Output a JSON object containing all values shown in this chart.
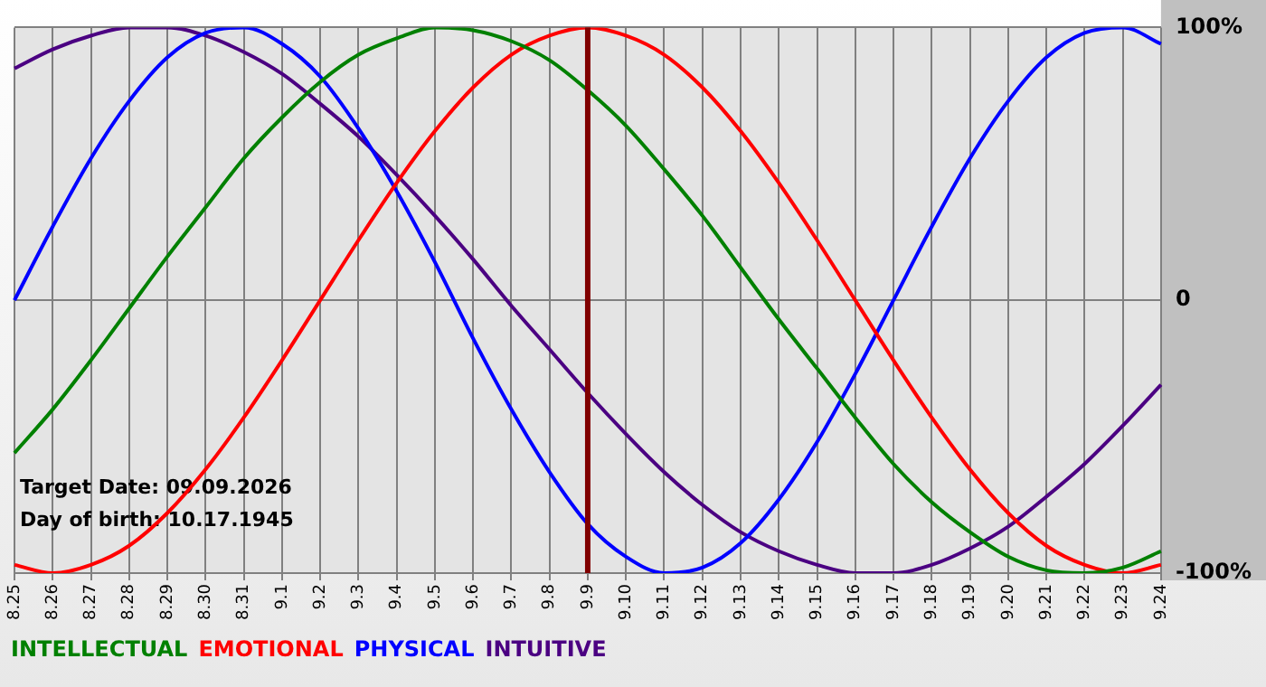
{
  "chart_data": {
    "type": "line",
    "categories": [
      "8.25",
      "8.26",
      "8.27",
      "8.28",
      "8.29",
      "8.30",
      "8.31",
      "9.1",
      "9.2",
      "9.3",
      "9.4",
      "9.5",
      "9.6",
      "9.7",
      "9.8",
      "9.9",
      "9.10",
      "9.11",
      "9.12",
      "9.13",
      "9.14",
      "9.15",
      "9.16",
      "9.17",
      "9.18",
      "9.19",
      "9.20",
      "9.21",
      "9.22",
      "9.23",
      "9.24"
    ],
    "series": [
      {
        "name": "INTELLECTUAL",
        "color": "#008000",
        "values": [
          -56,
          -40,
          -22,
          -3,
          16,
          34,
          52,
          67,
          80,
          90,
          96,
          100,
          99,
          95,
          88,
          77,
          64,
          48,
          31,
          12,
          -7,
          -25,
          -43,
          -60,
          -74,
          -85,
          -94,
          -99,
          -100,
          -98,
          -92
        ]
      },
      {
        "name": "EMOTIONAL",
        "color": "#ff0000",
        "values": [
          -97,
          -100,
          -97,
          -90,
          -78,
          -62,
          -43,
          -22,
          0,
          22,
          43,
          62,
          78,
          90,
          97,
          100,
          97,
          90,
          78,
          62,
          43,
          22,
          0,
          -22,
          -43,
          -62,
          -78,
          -90,
          -97,
          -100,
          -97
        ]
      },
      {
        "name": "PHYSICAL",
        "color": "#0000ff",
        "values": [
          0,
          27,
          52,
          73,
          89,
          98,
          100,
          94,
          82,
          63,
          40,
          14,
          -14,
          -40,
          -63,
          -82,
          -94,
          -100,
          -98,
          -89,
          -73,
          -52,
          -27,
          0,
          27,
          52,
          73,
          89,
          98,
          100,
          94
        ]
      },
      {
        "name": "INTUITIVE",
        "color": "#4b0082",
        "values": [
          85,
          92,
          97,
          100,
          100,
          97,
          91,
          83,
          72,
          60,
          46,
          31,
          15,
          -2,
          -18,
          -34,
          -49,
          -63,
          -75,
          -85,
          -92,
          -97,
          -100,
          -100,
          -97,
          -91,
          -83,
          -72,
          -60,
          -46,
          -31
        ]
      }
    ],
    "ylim": [
      -100,
      100
    ],
    "yticks": [
      {
        "value": 100,
        "label": "100%"
      },
      0,
      {
        "value": -100,
        "label": "-100%"
      }
    ],
    "ref_lines": [
      {
        "axis": "x",
        "value": "9.9",
        "color": "#800000"
      }
    ],
    "annotations": [
      "Target Date: 09.09.2026",
      "Day of birth: 10.17.1945"
    ],
    "grid": true,
    "legend": "bottom",
    "marker": "none",
    "line_style": "solid"
  }
}
